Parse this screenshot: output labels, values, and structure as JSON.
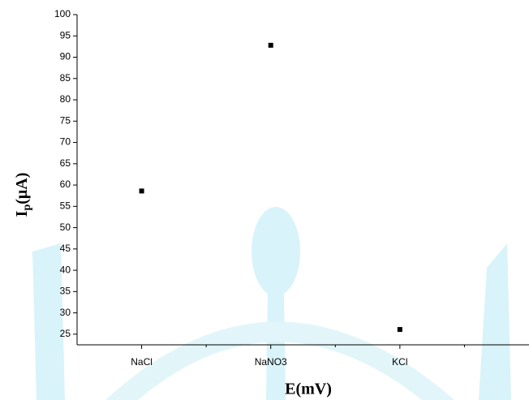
{
  "chart_data": {
    "type": "scatter",
    "x_label": "E(mV)",
    "y_label": {
      "main": "I",
      "sub": "p",
      "rest": "(μA)"
    },
    "categories": [
      "NaCl",
      "NaNO3",
      "KCl"
    ],
    "xlim": [
      0.5,
      4.0
    ],
    "values": [
      58.6,
      92.8,
      26.1
    ],
    "color": "#000000",
    "ylim": [
      22.5,
      100
    ],
    "yticks": [
      25,
      30,
      35,
      40,
      45,
      50,
      55,
      60,
      65,
      70,
      75,
      80,
      85,
      90,
      95,
      100
    ]
  }
}
